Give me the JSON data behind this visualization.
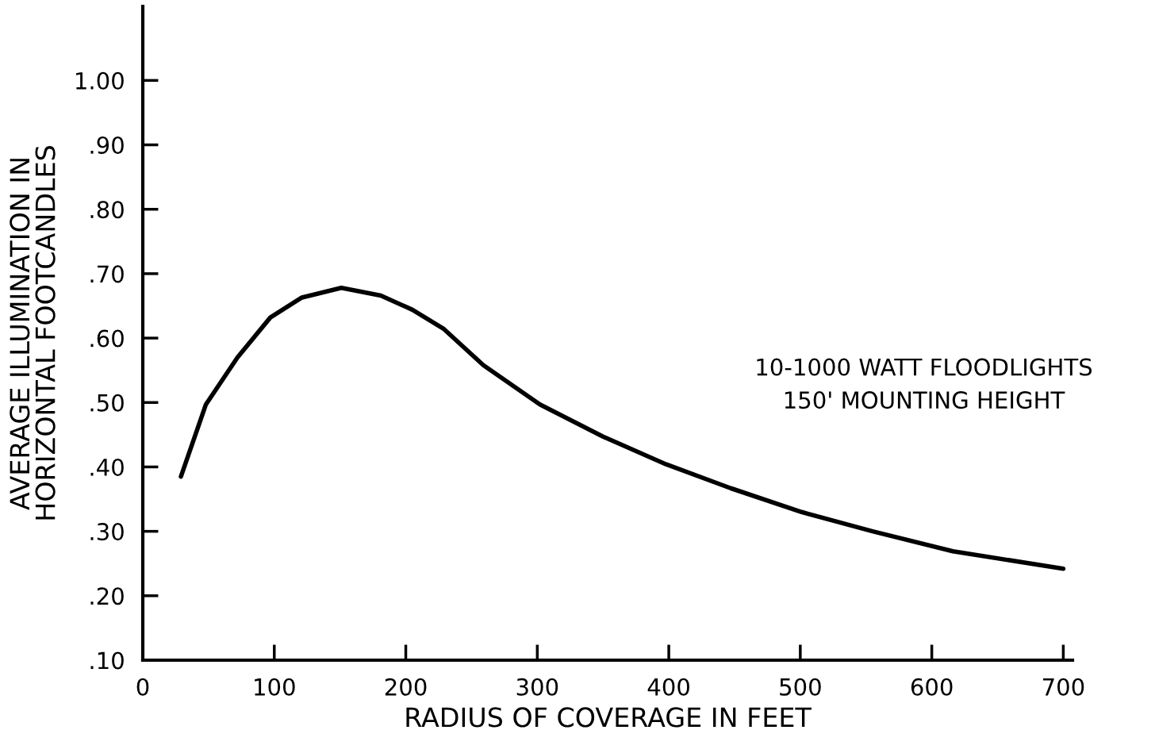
{
  "chart_data": {
    "type": "line",
    "xlabel": "RADIUS OF COVERAGE IN FEET",
    "ylabel": "AVERAGE ILLUMINATION IN\nHORIZONTAL FOOTCANDLES",
    "annotations": [
      "10-1000 WATT FLOODLIGHTS\n150' MOUNTING HEIGHT"
    ],
    "x": [
      29,
      48,
      72,
      97,
      121,
      151,
      181,
      205,
      229,
      259,
      302,
      350,
      398,
      447,
      501,
      555,
      616,
      700
    ],
    "series": [
      {
        "color": "#000000",
        "values": [
          0.385,
          0.497,
          0.57,
          0.632,
          0.663,
          0.678,
          0.666,
          0.644,
          0.614,
          0.558,
          0.497,
          0.447,
          0.404,
          0.367,
          0.33,
          0.3,
          0.269,
          0.242
        ]
      }
    ],
    "xlim": [
      0,
      707
    ],
    "ylim": [
      0.1,
      1.115
    ],
    "xticks": [
      0,
      100,
      200,
      300,
      400,
      500,
      600,
      700
    ],
    "yticks": [
      {
        "value": 0.1,
        "label": ".10"
      },
      {
        "value": 0.2,
        "label": ".20"
      },
      {
        "value": 0.3,
        "label": ".30"
      },
      {
        "value": 0.4,
        "label": ".40"
      },
      {
        "value": 0.5,
        "label": ".50"
      },
      {
        "value": 0.6,
        "label": ".60"
      },
      {
        "value": 0.7,
        "label": ".70"
      },
      {
        "value": 0.8,
        "label": ".80"
      },
      {
        "value": 0.9,
        "label": ".90"
      },
      {
        "value": 1.0,
        "label": "1.00"
      }
    ],
    "marker": "none",
    "line_style": "solid"
  }
}
